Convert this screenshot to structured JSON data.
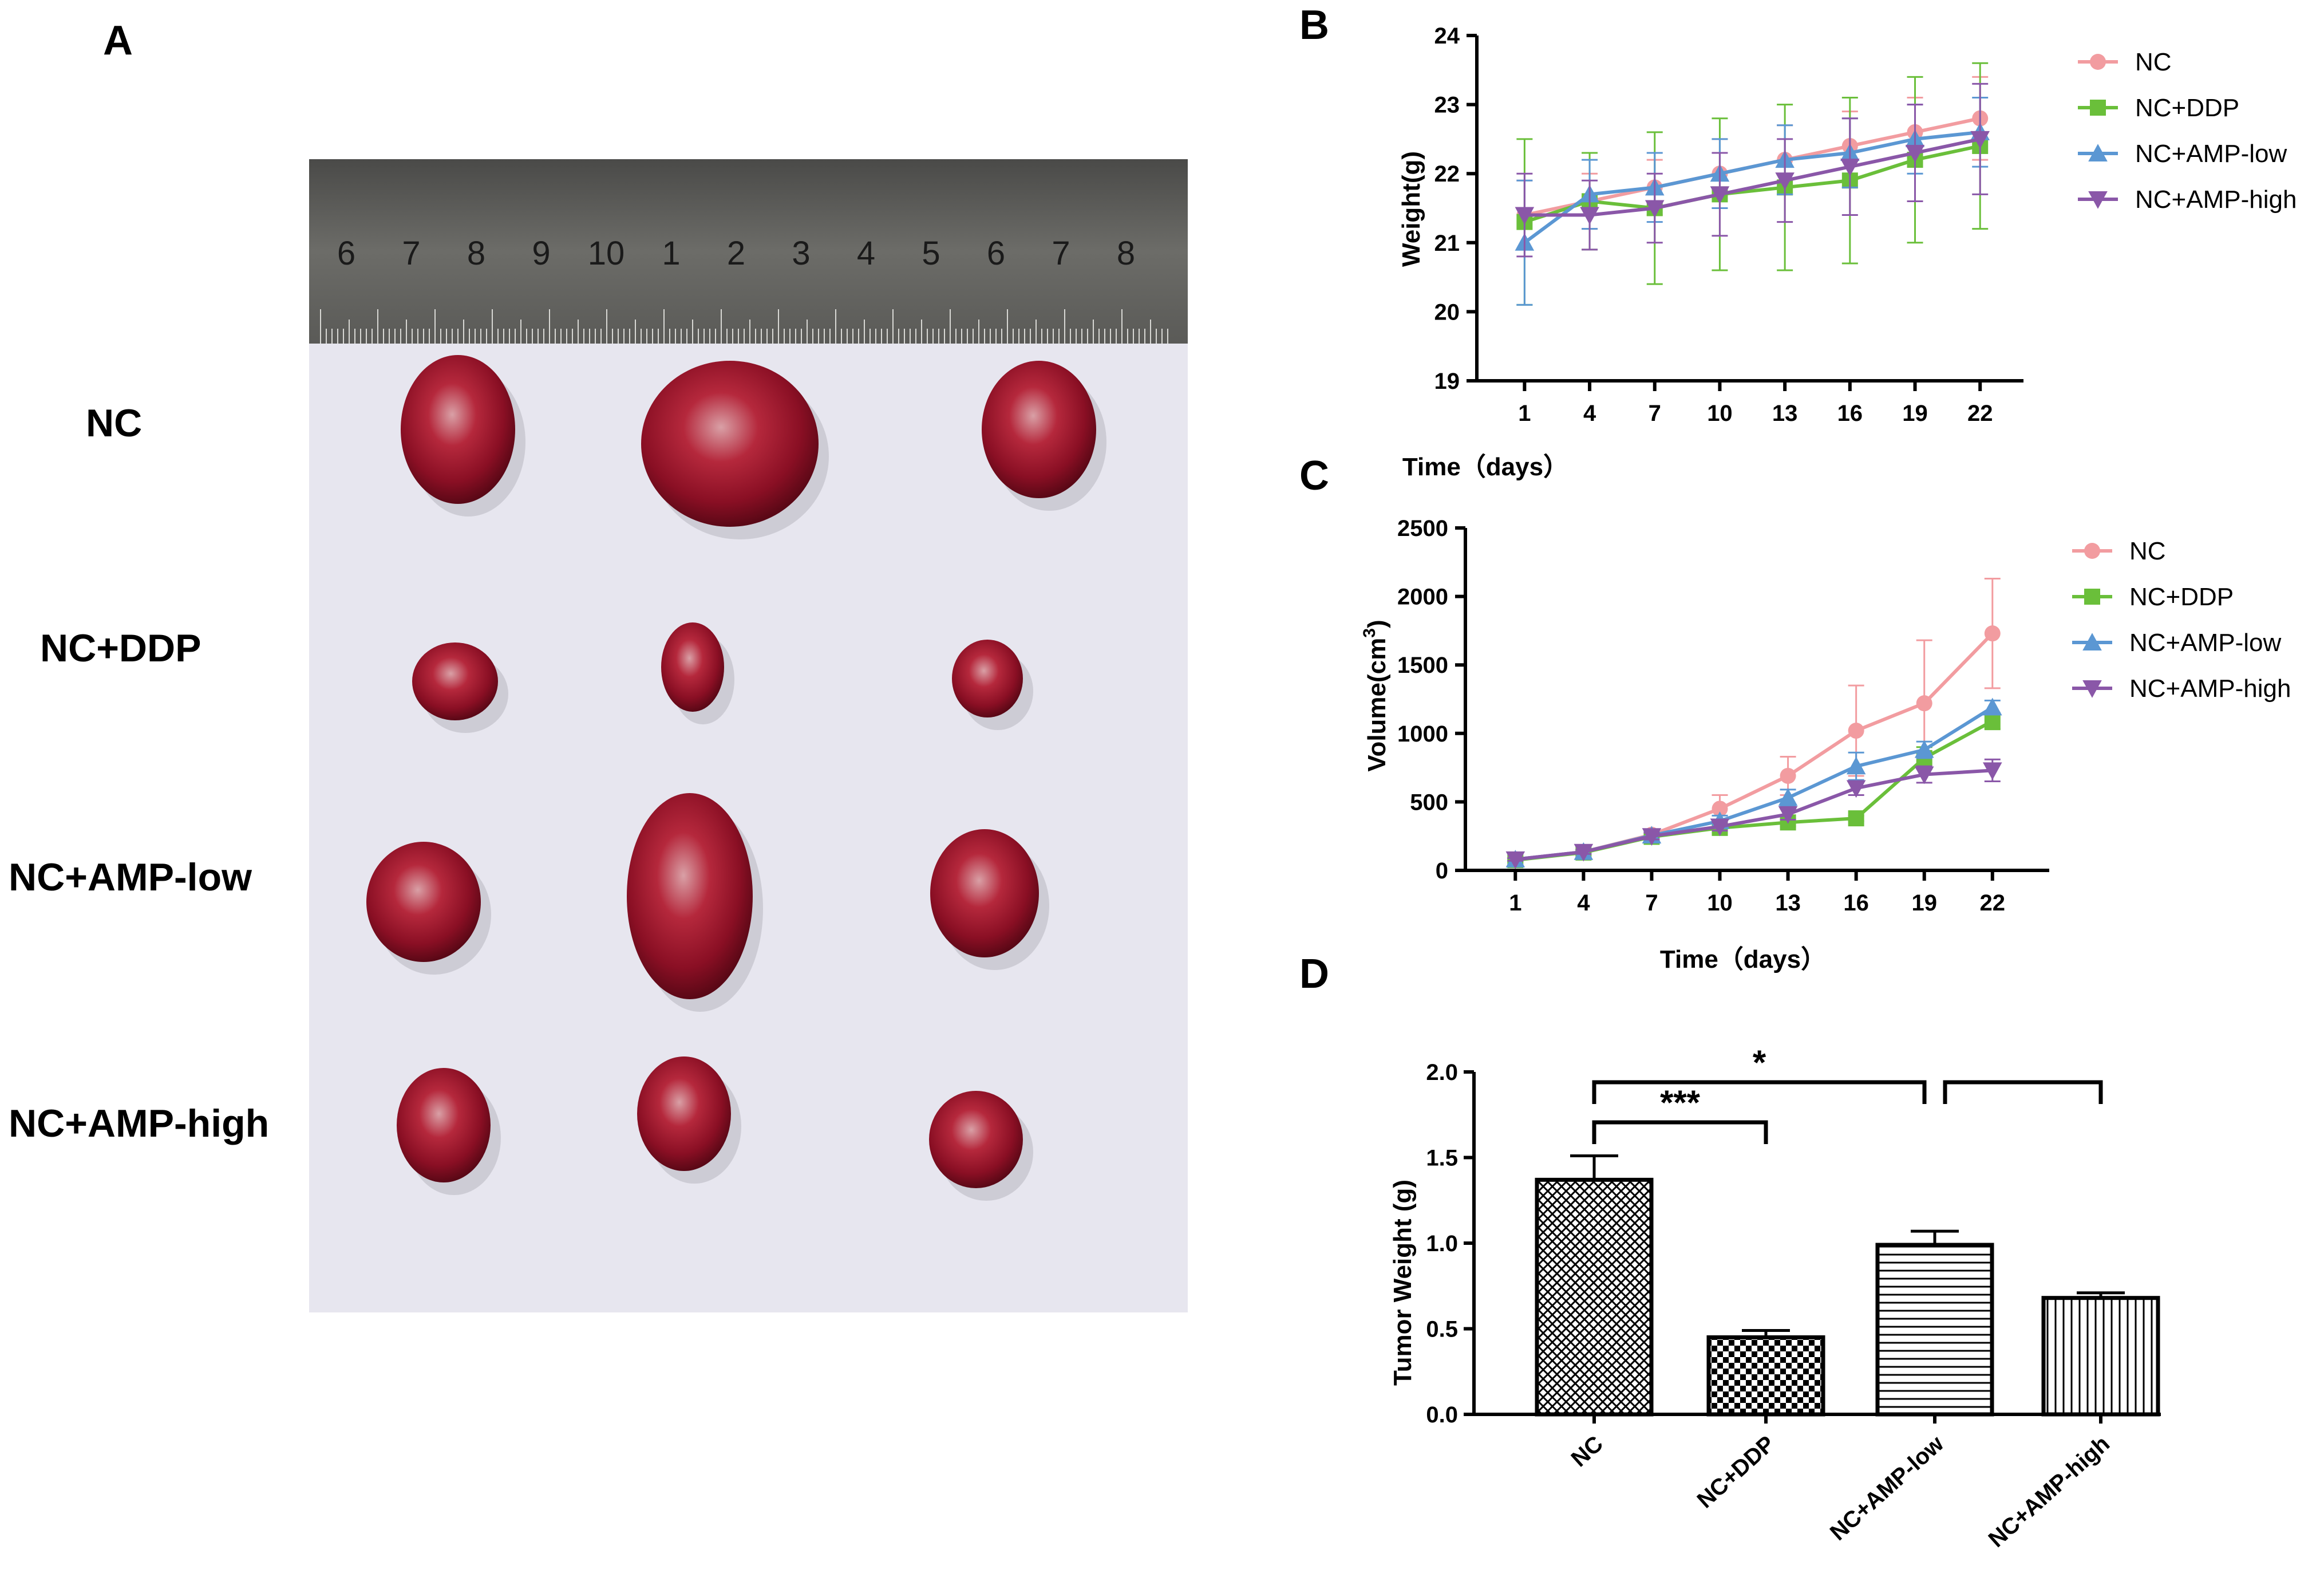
{
  "figure": {
    "panels": {
      "a": "A",
      "b": "B",
      "c": "C",
      "d": "D"
    }
  },
  "photo": {
    "row_labels": [
      "NC",
      "NC+DDP",
      "NC+AMP-low",
      "NC+AMP-high"
    ],
    "ruler_labels": [
      "6",
      "7",
      "8",
      "9",
      "10",
      "1",
      "2",
      "3",
      "4",
      "5",
      "6",
      "7",
      "8"
    ]
  },
  "colors": {
    "NC": "#f29ca0",
    "NC+DDP": "#6abf3a",
    "NC+AMP-low": "#5b97d3",
    "NC+AMP-high": "#8a57a8"
  },
  "chart_data": [
    {
      "id": "B",
      "type": "line",
      "xlabel": "Time（days）",
      "ylabel": "Weight(g)",
      "x": [
        1,
        4,
        7,
        10,
        13,
        16,
        19,
        22
      ],
      "ylim": [
        19,
        24
      ],
      "yticks": [
        19,
        20,
        21,
        22,
        23,
        24
      ],
      "series": [
        {
          "name": "NC",
          "marker": "circle",
          "values": [
            21.4,
            21.6,
            21.8,
            22.0,
            22.2,
            22.4,
            22.6,
            22.8
          ],
          "err": [
            0.5,
            0.4,
            0.4,
            0.5,
            0.5,
            0.5,
            0.5,
            0.6
          ]
        },
        {
          "name": "NC+DDP",
          "marker": "square",
          "values": [
            21.3,
            21.6,
            21.5,
            21.7,
            21.8,
            21.9,
            22.2,
            22.4
          ],
          "err": [
            1.2,
            0.7,
            1.1,
            1.1,
            1.2,
            1.2,
            1.2,
            1.2
          ]
        },
        {
          "name": "NC+AMP-low",
          "marker": "triangle-up",
          "values": [
            21.0,
            21.7,
            21.8,
            22.0,
            22.2,
            22.3,
            22.5,
            22.6
          ],
          "err": [
            0.9,
            0.5,
            0.5,
            0.5,
            0.5,
            0.5,
            0.5,
            0.5
          ]
        },
        {
          "name": "NC+AMP-high",
          "marker": "triangle-down",
          "values": [
            21.4,
            21.4,
            21.5,
            21.7,
            21.9,
            22.1,
            22.3,
            22.5
          ],
          "err": [
            0.6,
            0.5,
            0.5,
            0.6,
            0.6,
            0.7,
            0.7,
            0.8
          ]
        }
      ]
    },
    {
      "id": "C",
      "type": "line",
      "xlabel": "Time（days）",
      "ylabel_main": "Volume(cm",
      "ylabel_sup": "3",
      "ylabel_end": ")",
      "x": [
        1,
        4,
        7,
        10,
        13,
        16,
        19,
        22
      ],
      "ylim": [
        0,
        2500
      ],
      "yticks": [
        0,
        500,
        1000,
        1500,
        2000,
        2500
      ],
      "series": [
        {
          "name": "NC",
          "marker": "circle",
          "values": [
            80,
            135,
            260,
            450,
            690,
            1020,
            1220,
            1730
          ],
          "err": [
            10,
            15,
            30,
            100,
            140,
            330,
            460,
            400
          ]
        },
        {
          "name": "NC+DDP",
          "marker": "square",
          "values": [
            75,
            130,
            245,
            310,
            350,
            380,
            820,
            1090
          ],
          "err": [
            10,
            15,
            25,
            30,
            30,
            20,
            80,
            60
          ]
        },
        {
          "name": "NC+AMP-low",
          "marker": "triangle-up",
          "values": [
            80,
            135,
            255,
            360,
            530,
            760,
            880,
            1190
          ],
          "err": [
            10,
            15,
            25,
            40,
            60,
            100,
            60,
            50
          ]
        },
        {
          "name": "NC+AMP-high",
          "marker": "triangle-down",
          "values": [
            80,
            135,
            250,
            320,
            410,
            600,
            700,
            730
          ],
          "err": [
            10,
            15,
            25,
            30,
            40,
            50,
            60,
            80
          ]
        }
      ]
    },
    {
      "id": "D",
      "type": "bar",
      "ylabel": "Tumor Weight (g)",
      "categories": [
        "NC",
        "NC+DDP",
        "NC+AMP-low",
        "NC+AMP-high"
      ],
      "values": [
        1.37,
        0.45,
        0.99,
        0.68
      ],
      "err": [
        0.14,
        0.04,
        0.08,
        0.03
      ],
      "patterns": [
        "crosshatch",
        "checker",
        "horizontal",
        "vertical"
      ],
      "ylim": [
        0,
        2.0
      ],
      "yticks": [
        "0.0",
        "0.5",
        "1.0",
        "1.5",
        "2.0"
      ],
      "significance": [
        {
          "from": 0,
          "to": 1,
          "label": "***"
        },
        {
          "from": 0,
          "to": 2,
          "label": "*"
        },
        {
          "from": 2,
          "to": 3,
          "label": ""
        }
      ]
    }
  ]
}
